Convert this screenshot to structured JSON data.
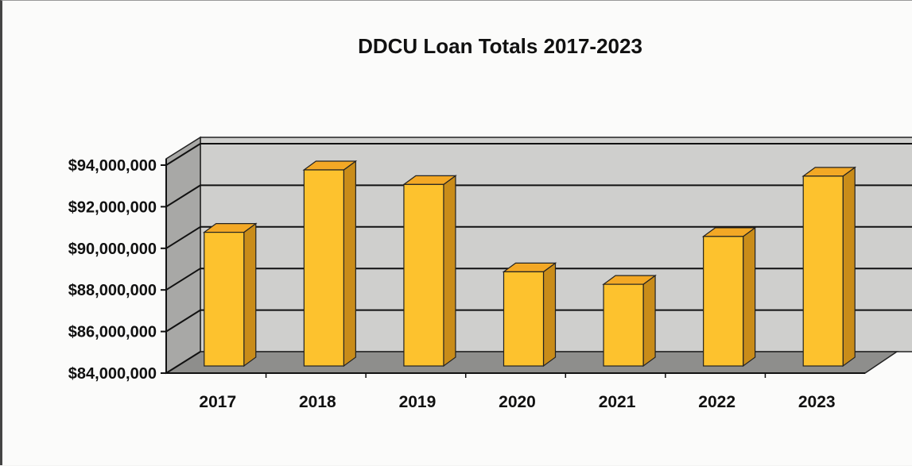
{
  "chart_data": {
    "type": "bar",
    "title": "DDCU Loan Totals 2017-2023",
    "xlabel": "",
    "ylabel": "",
    "categories": [
      "2017",
      "2018",
      "2019",
      "2020",
      "2021",
      "2022",
      "2023"
    ],
    "values": [
      91000000,
      94000000,
      93300000,
      89100000,
      88500000,
      90800000,
      93700000
    ],
    "ylim": [
      84000000,
      94000000
    ],
    "yticks": [
      84000000,
      86000000,
      88000000,
      90000000,
      92000000,
      94000000
    ],
    "ytick_labels": [
      "$84,000,000",
      "$86,000,000",
      "$88,000,000",
      "$90,000,000",
      "$92,000,000",
      "$94,000,000"
    ],
    "grid": true,
    "legend": "none",
    "colors": {
      "bar_front": "#fdc22e",
      "bar_side": "#c98c19",
      "bar_top": "#f3a825",
      "back_wall": "#cfcfcd",
      "side_wall": "#a8a8a6",
      "floor": "#8e8e8c",
      "gridline": "#111111"
    }
  }
}
